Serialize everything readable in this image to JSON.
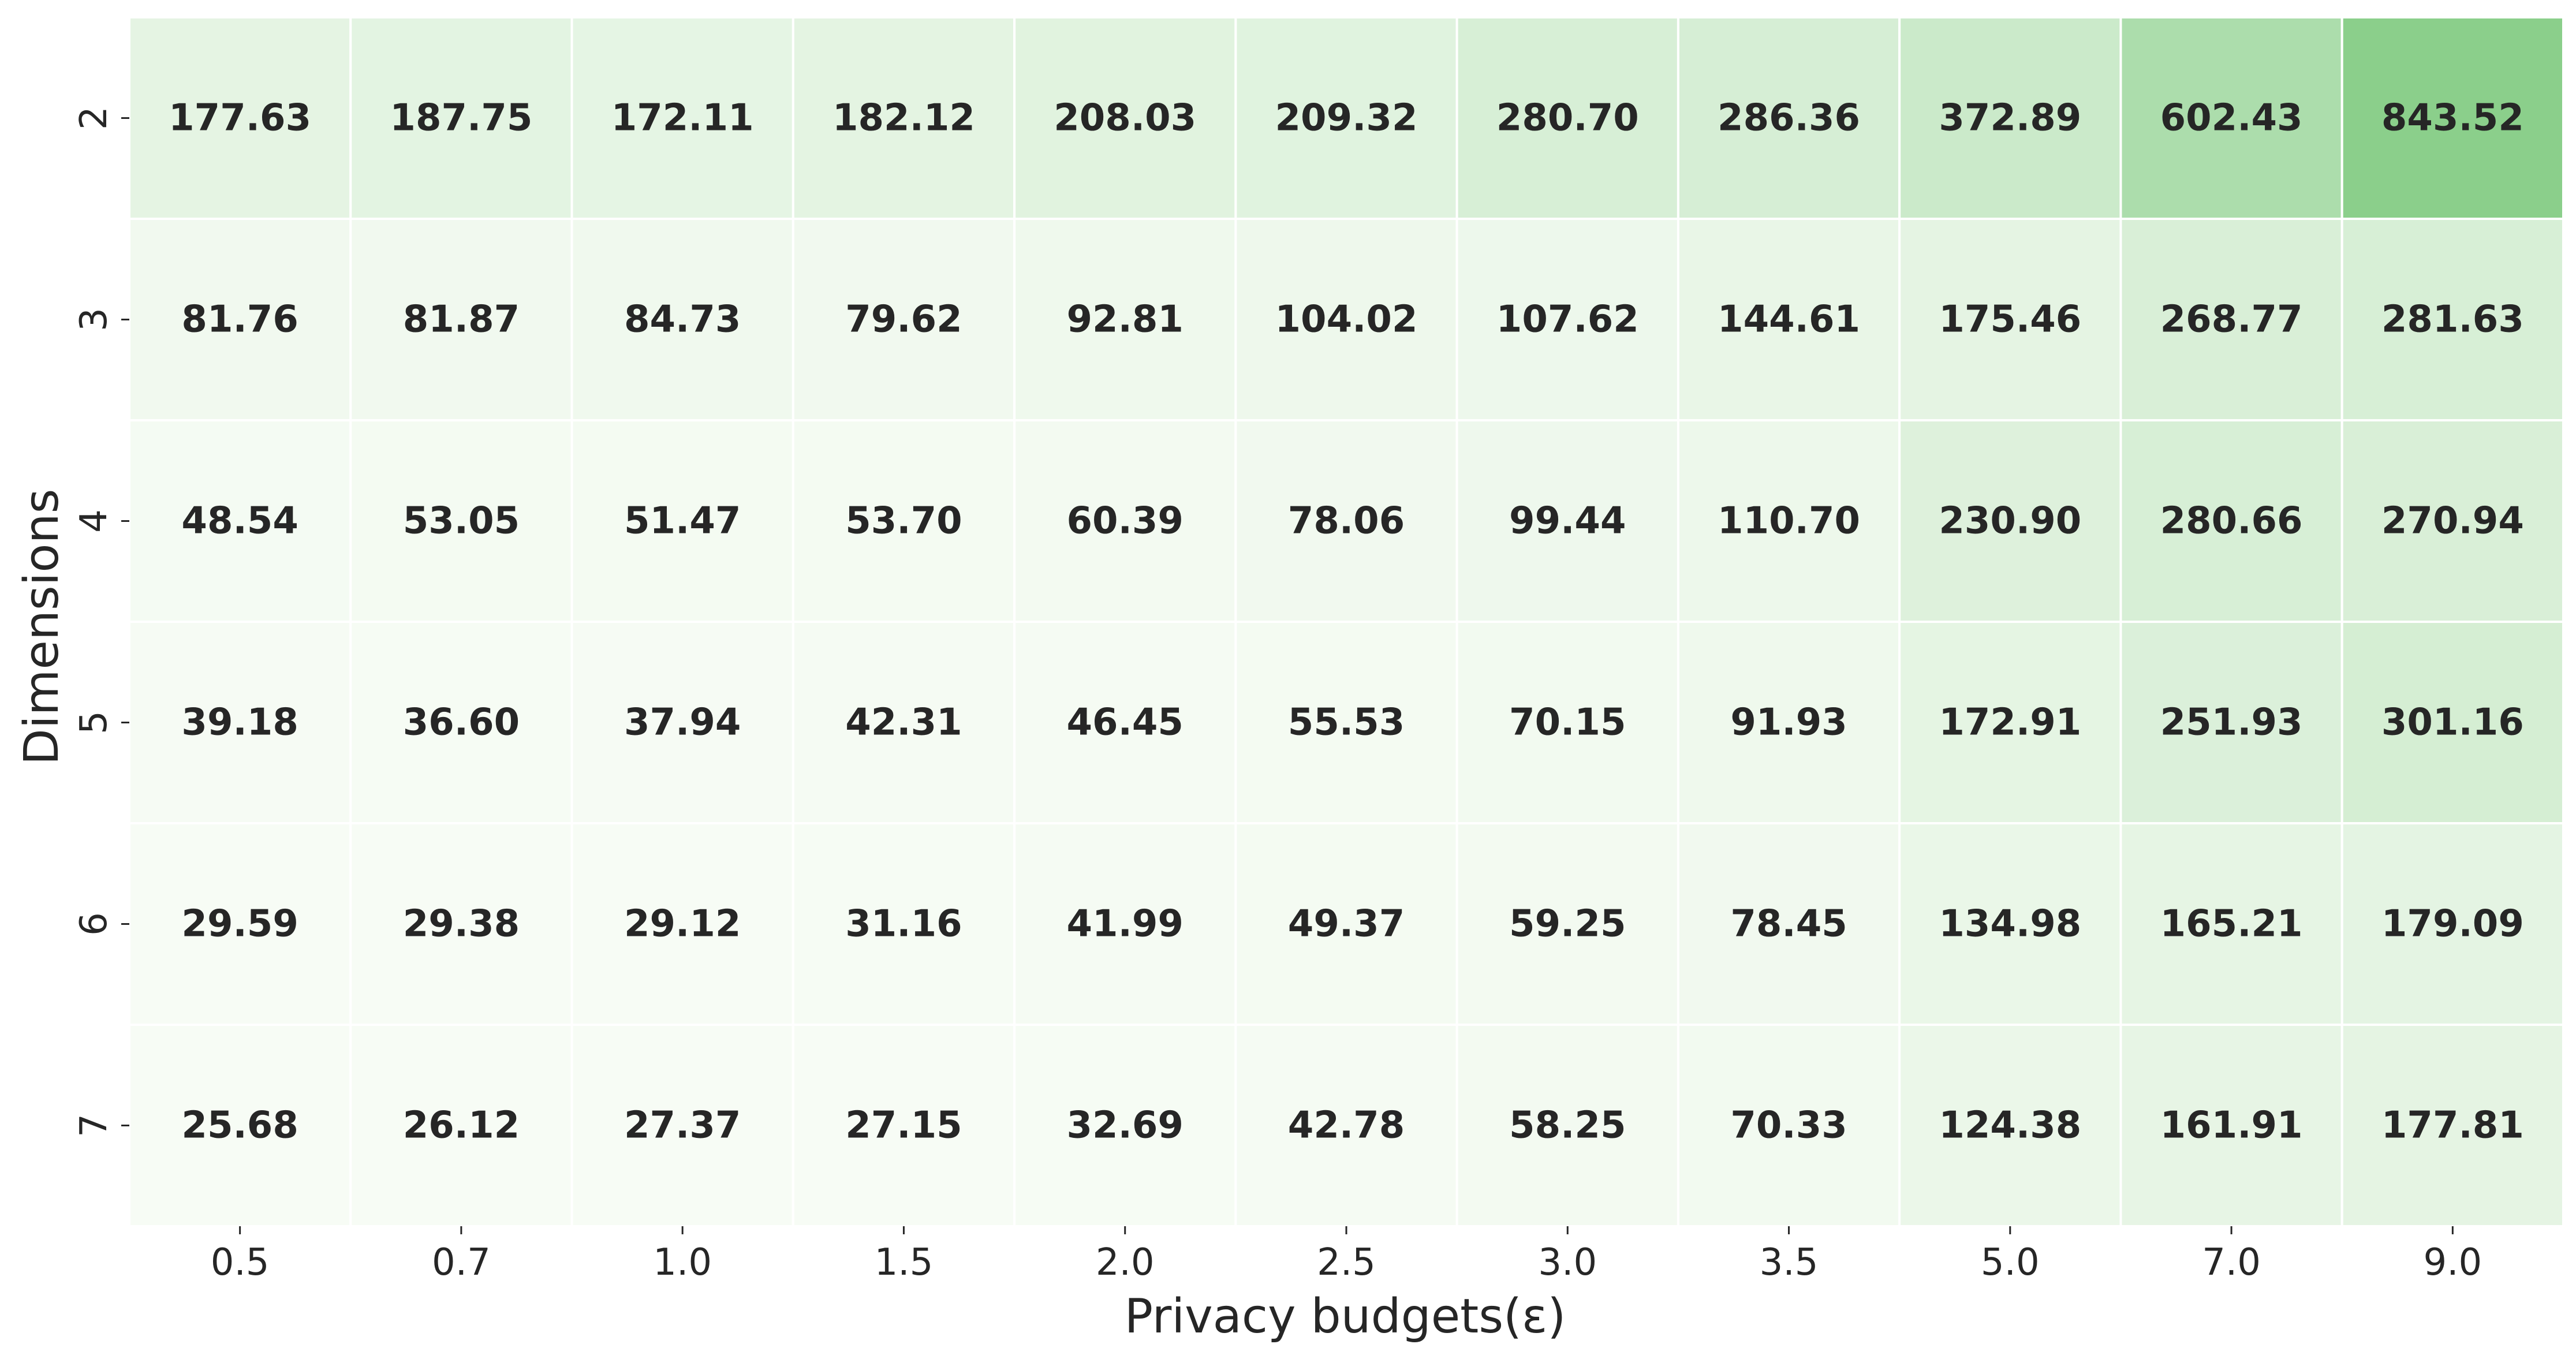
{
  "chart_data": {
    "type": "heatmap",
    "title": "",
    "xlabel": "Privacy budgets(ε)",
    "ylabel": "Dimensions",
    "x_categories": [
      "0.5",
      "0.7",
      "1.0",
      "1.5",
      "2.0",
      "2.5",
      "3.0",
      "3.5",
      "5.0",
      "7.0",
      "9.0"
    ],
    "y_categories": [
      "2",
      "3",
      "4",
      "5",
      "6",
      "7"
    ],
    "values": [
      [
        177.63,
        187.75,
        172.11,
        182.12,
        208.03,
        209.32,
        280.7,
        286.36,
        372.89,
        602.43,
        843.52
      ],
      [
        81.76,
        81.87,
        84.73,
        79.62,
        92.81,
        104.02,
        107.62,
        144.61,
        175.46,
        268.77,
        281.63
      ],
      [
        48.54,
        53.05,
        51.47,
        53.7,
        60.39,
        78.06,
        99.44,
        110.7,
        230.9,
        280.66,
        270.94
      ],
      [
        39.18,
        36.6,
        37.94,
        42.31,
        46.45,
        55.53,
        70.15,
        91.93,
        172.91,
        251.93,
        301.16
      ],
      [
        29.59,
        29.38,
        29.12,
        31.16,
        41.99,
        49.37,
        59.25,
        78.45,
        134.98,
        165.21,
        179.09
      ],
      [
        25.68,
        26.12,
        27.37,
        27.15,
        32.69,
        42.78,
        58.25,
        70.33,
        124.38,
        161.91,
        177.81
      ]
    ],
    "colormap": {
      "low": "#f7fcf5",
      "high": "#8bcf8b"
    },
    "grid": false,
    "legend": "none"
  }
}
